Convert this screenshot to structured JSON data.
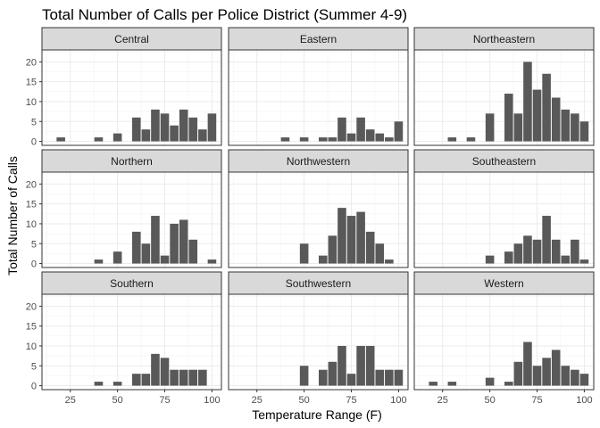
{
  "chart_data": {
    "type": "bar",
    "title": "Total Number of Calls per Police District (Summer 4-9)",
    "xlabel": "Temperature Range (F)",
    "ylabel": "Total Number of Calls",
    "xlim": [
      10,
      105
    ],
    "ylim": [
      -1,
      23
    ],
    "xticks": [
      25,
      50,
      75,
      100
    ],
    "yticks": [
      0,
      5,
      10,
      15,
      20
    ],
    "grid": true,
    "layout": "facet grid 3 x 3",
    "bin_width": 5,
    "bar_color": "#595959",
    "panel_border_color": "#333333",
    "strip_fill": "#d9d9d9",
    "grid_color": "#ebebeb",
    "panels": [
      {
        "name": "Central",
        "bins": [
          [
            20,
            1
          ],
          [
            40,
            1
          ],
          [
            50,
            2
          ],
          [
            60,
            6
          ],
          [
            65,
            3
          ],
          [
            70,
            8
          ],
          [
            75,
            7
          ],
          [
            80,
            4
          ],
          [
            85,
            8
          ],
          [
            90,
            6
          ],
          [
            95,
            3
          ],
          [
            100,
            7
          ]
        ]
      },
      {
        "name": "Eastern",
        "bins": [
          [
            40,
            1
          ],
          [
            50,
            1
          ],
          [
            60,
            1
          ],
          [
            65,
            1
          ],
          [
            70,
            6
          ],
          [
            75,
            2
          ],
          [
            80,
            6
          ],
          [
            85,
            3
          ],
          [
            90,
            2
          ],
          [
            95,
            1
          ],
          [
            100,
            5
          ]
        ]
      },
      {
        "name": "Northeastern",
        "bins": [
          [
            30,
            1
          ],
          [
            40,
            1
          ],
          [
            50,
            7
          ],
          [
            60,
            12
          ],
          [
            65,
            7
          ],
          [
            70,
            20
          ],
          [
            75,
            13
          ],
          [
            80,
            17
          ],
          [
            85,
            11
          ],
          [
            90,
            8
          ],
          [
            95,
            7
          ],
          [
            100,
            5
          ]
        ]
      },
      {
        "name": "Northern",
        "bins": [
          [
            40,
            1
          ],
          [
            50,
            3
          ],
          [
            60,
            8
          ],
          [
            65,
            5
          ],
          [
            70,
            12
          ],
          [
            75,
            2
          ],
          [
            80,
            10
          ],
          [
            85,
            11
          ],
          [
            90,
            6
          ],
          [
            100,
            1
          ]
        ]
      },
      {
        "name": "Northwestern",
        "bins": [
          [
            50,
            5
          ],
          [
            60,
            2
          ],
          [
            65,
            7
          ],
          [
            70,
            14
          ],
          [
            75,
            12
          ],
          [
            80,
            13
          ],
          [
            85,
            8
          ],
          [
            90,
            5
          ],
          [
            95,
            1
          ]
        ]
      },
      {
        "name": "Southeastern",
        "bins": [
          [
            50,
            2
          ],
          [
            60,
            3
          ],
          [
            65,
            5
          ],
          [
            70,
            7
          ],
          [
            75,
            6
          ],
          [
            80,
            12
          ],
          [
            85,
            6
          ],
          [
            90,
            2
          ],
          [
            95,
            6
          ],
          [
            100,
            1
          ]
        ]
      },
      {
        "name": "Southern",
        "bins": [
          [
            40,
            1
          ],
          [
            50,
            1
          ],
          [
            60,
            3
          ],
          [
            65,
            3
          ],
          [
            70,
            8
          ],
          [
            75,
            7
          ],
          [
            80,
            4
          ],
          [
            85,
            4
          ],
          [
            90,
            4
          ],
          [
            95,
            4
          ]
        ]
      },
      {
        "name": "Southwestern",
        "bins": [
          [
            50,
            5
          ],
          [
            60,
            4
          ],
          [
            65,
            6
          ],
          [
            70,
            10
          ],
          [
            75,
            3
          ],
          [
            80,
            10
          ],
          [
            85,
            10
          ],
          [
            90,
            4
          ],
          [
            95,
            4
          ],
          [
            100,
            4
          ]
        ]
      },
      {
        "name": "Western",
        "bins": [
          [
            20,
            1
          ],
          [
            30,
            1
          ],
          [
            50,
            2
          ],
          [
            60,
            1
          ],
          [
            65,
            6
          ],
          [
            70,
            11
          ],
          [
            75,
            5
          ],
          [
            80,
            7
          ],
          [
            85,
            9
          ],
          [
            90,
            5
          ],
          [
            95,
            4
          ],
          [
            100,
            3
          ]
        ]
      }
    ]
  }
}
